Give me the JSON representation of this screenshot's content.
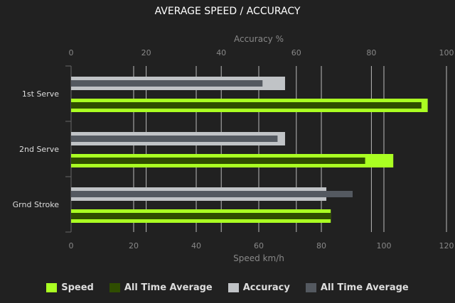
{
  "chart_data": {
    "type": "bar",
    "orientation": "horizontal",
    "title": "AVERAGE SPEED / ACCURACY",
    "categories": [
      "1st Serve",
      "2nd Serve",
      "Grnd Stroke"
    ],
    "top_axis": {
      "label": "Accuracy %",
      "range": [
        0,
        100
      ],
      "ticks": [
        0,
        20,
        40,
        60,
        80,
        100
      ]
    },
    "bottom_axis": {
      "label": "Speed km/h",
      "range": [
        0,
        120
      ],
      "ticks": [
        0,
        20,
        40,
        60,
        80,
        100,
        120
      ]
    },
    "grid": true,
    "legend_position": "bottom",
    "series": [
      {
        "name": "Speed",
        "axis": "speed",
        "color": "#aaff22",
        "values": [
          114,
          103,
          83
        ]
      },
      {
        "name": "All Time Average",
        "axis": "speed",
        "color": "#2f4d00",
        "values": [
          112,
          94,
          83
        ]
      },
      {
        "name": "Accuracy",
        "axis": "accuracy",
        "color": "#c0c3c6",
        "values": [
          57,
          57,
          68
        ]
      },
      {
        "name": "All Time Average",
        "axis": "accuracy",
        "color": "#545960",
        "values": [
          51,
          55,
          75
        ]
      }
    ]
  }
}
